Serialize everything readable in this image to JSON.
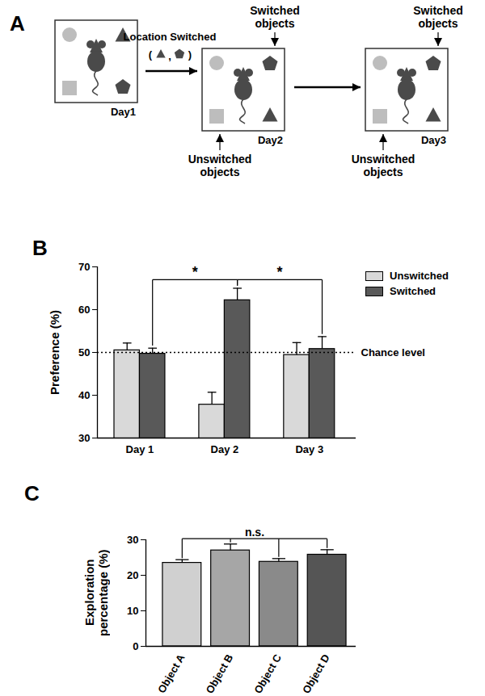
{
  "diagram": {
    "title": "A",
    "arenas": [
      {
        "label": "Day1"
      },
      {
        "label": "Day2",
        "top_note": "Switched objects",
        "bottom_note": "Unswitched objects"
      },
      {
        "label": "Day3",
        "top_note": "Switched objects",
        "bottom_note": "Unswitched objects"
      }
    ],
    "transition_label": "Location Switched",
    "transition_sublabel": {
      "open": "(",
      "separator": ",",
      "close": ")"
    }
  },
  "chart_data": [
    {
      "type": "bar",
      "title": "B",
      "categories": [
        "Day 1",
        "Day 2",
        "Day 3"
      ],
      "series": [
        {
          "name": "Unswitched",
          "color": "#d9d9d9",
          "values": [
            50.5,
            37.8,
            49.4
          ],
          "errors": [
            1.7,
            2.9,
            2.9
          ]
        },
        {
          "name": "Switched",
          "color": "#595959",
          "values": [
            49.7,
            62.2,
            50.8
          ],
          "errors": [
            1.3,
            2.8,
            2.9
          ]
        }
      ],
      "y_label": "Preference (%)",
      "ylim": [
        30,
        70
      ],
      "yticks": [
        30,
        40,
        50,
        60,
        70
      ],
      "legend": "right",
      "annotations": [
        {
          "type": "reference_line",
          "text": "Chance level",
          "value": 50,
          "line_style": "dotted"
        },
        {
          "type": "bracket",
          "text": "*",
          "from": {
            "category": "Day 1",
            "series": "Switched"
          },
          "to": {
            "category": "Day 2",
            "series": "Switched"
          }
        },
        {
          "type": "bracket",
          "text": "*",
          "from": {
            "category": "Day 2",
            "series": "Switched"
          },
          "to": {
            "category": "Day 3",
            "series": "Switched"
          }
        }
      ]
    },
    {
      "type": "bar",
      "title": "C",
      "categories": [
        "Object A",
        "Object B",
        "Object C",
        "Object D"
      ],
      "values": [
        23.5,
        27.0,
        23.8,
        25.8
      ],
      "errors": [
        0.9,
        1.8,
        0.9,
        1.4
      ],
      "colors": [
        "#d0d0d0",
        "#a6a6a6",
        "#8a8a8a",
        "#555555"
      ],
      "y_label": "Exploration percentage (%)",
      "ylim": [
        0,
        30
      ],
      "yticks": [
        0,
        10,
        20,
        30
      ],
      "annotations": [
        {
          "type": "bracket",
          "text": "n.s.",
          "from": {
            "category": "Object A"
          },
          "to": {
            "category": "Object D"
          }
        }
      ]
    }
  ]
}
